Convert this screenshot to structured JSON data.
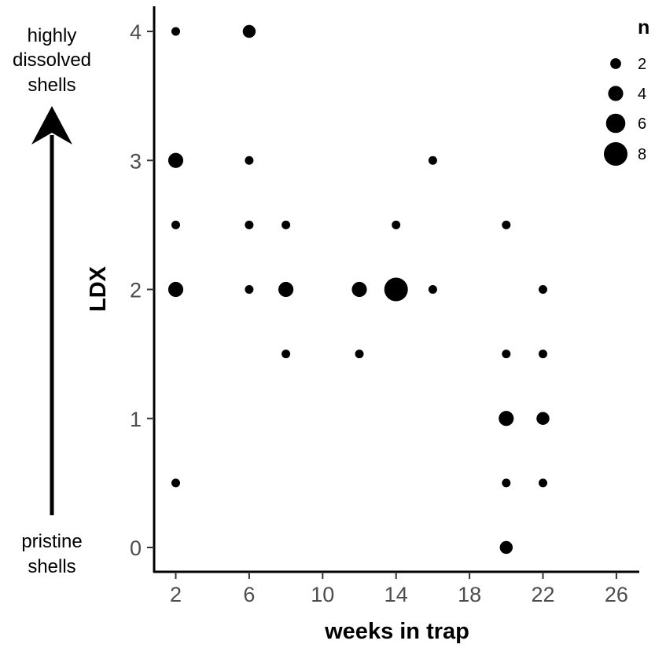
{
  "chart_data": {
    "type": "scatter",
    "xlabel": "weeks in trap",
    "ylabel": "LDX",
    "xticks": [
      2,
      6,
      10,
      14,
      18,
      22,
      26
    ],
    "yticks": [
      0,
      1,
      2,
      3,
      4
    ],
    "xlim": [
      1,
      27
    ],
    "ylim": [
      -0.2,
      4.2
    ],
    "grid": false,
    "point_color": "#000000",
    "points": [
      {
        "x": 2,
        "y": 4,
        "n": 1
      },
      {
        "x": 2,
        "y": 3,
        "n": 4
      },
      {
        "x": 2,
        "y": 2.5,
        "n": 1
      },
      {
        "x": 2,
        "y": 2,
        "n": 4
      },
      {
        "x": 2,
        "y": 0.5,
        "n": 1
      },
      {
        "x": 6,
        "y": 4,
        "n": 3
      },
      {
        "x": 6,
        "y": 3,
        "n": 1
      },
      {
        "x": 6,
        "y": 2.5,
        "n": 1
      },
      {
        "x": 6,
        "y": 2,
        "n": 1
      },
      {
        "x": 8,
        "y": 2.5,
        "n": 1
      },
      {
        "x": 8,
        "y": 2,
        "n": 4
      },
      {
        "x": 8,
        "y": 1.5,
        "n": 1
      },
      {
        "x": 12,
        "y": 2,
        "n": 4
      },
      {
        "x": 12,
        "y": 1.5,
        "n": 1
      },
      {
        "x": 14,
        "y": 2.5,
        "n": 1
      },
      {
        "x": 14,
        "y": 2,
        "n": 8
      },
      {
        "x": 16,
        "y": 3,
        "n": 1
      },
      {
        "x": 16,
        "y": 2,
        "n": 1
      },
      {
        "x": 20,
        "y": 2.5,
        "n": 1
      },
      {
        "x": 20,
        "y": 1.5,
        "n": 1
      },
      {
        "x": 20,
        "y": 1,
        "n": 4
      },
      {
        "x": 20,
        "y": 0.5,
        "n": 1
      },
      {
        "x": 20,
        "y": 0,
        "n": 3
      },
      {
        "x": 22,
        "y": 2,
        "n": 1
      },
      {
        "x": 22,
        "y": 1.5,
        "n": 1
      },
      {
        "x": 22,
        "y": 1,
        "n": 3
      },
      {
        "x": 22,
        "y": 0.5,
        "n": 1
      }
    ],
    "legend": {
      "title": "n",
      "placement": "top-right",
      "entries": [
        {
          "label": "2",
          "n": 2
        },
        {
          "label": "4",
          "n": 4
        },
        {
          "label": "6",
          "n": 6
        },
        {
          "label": "8",
          "n": 8
        }
      ]
    },
    "annotations": {
      "top_lines": [
        "highly",
        "dissolved",
        "shells"
      ],
      "bottom_lines": [
        "pristine",
        "shells"
      ]
    }
  }
}
